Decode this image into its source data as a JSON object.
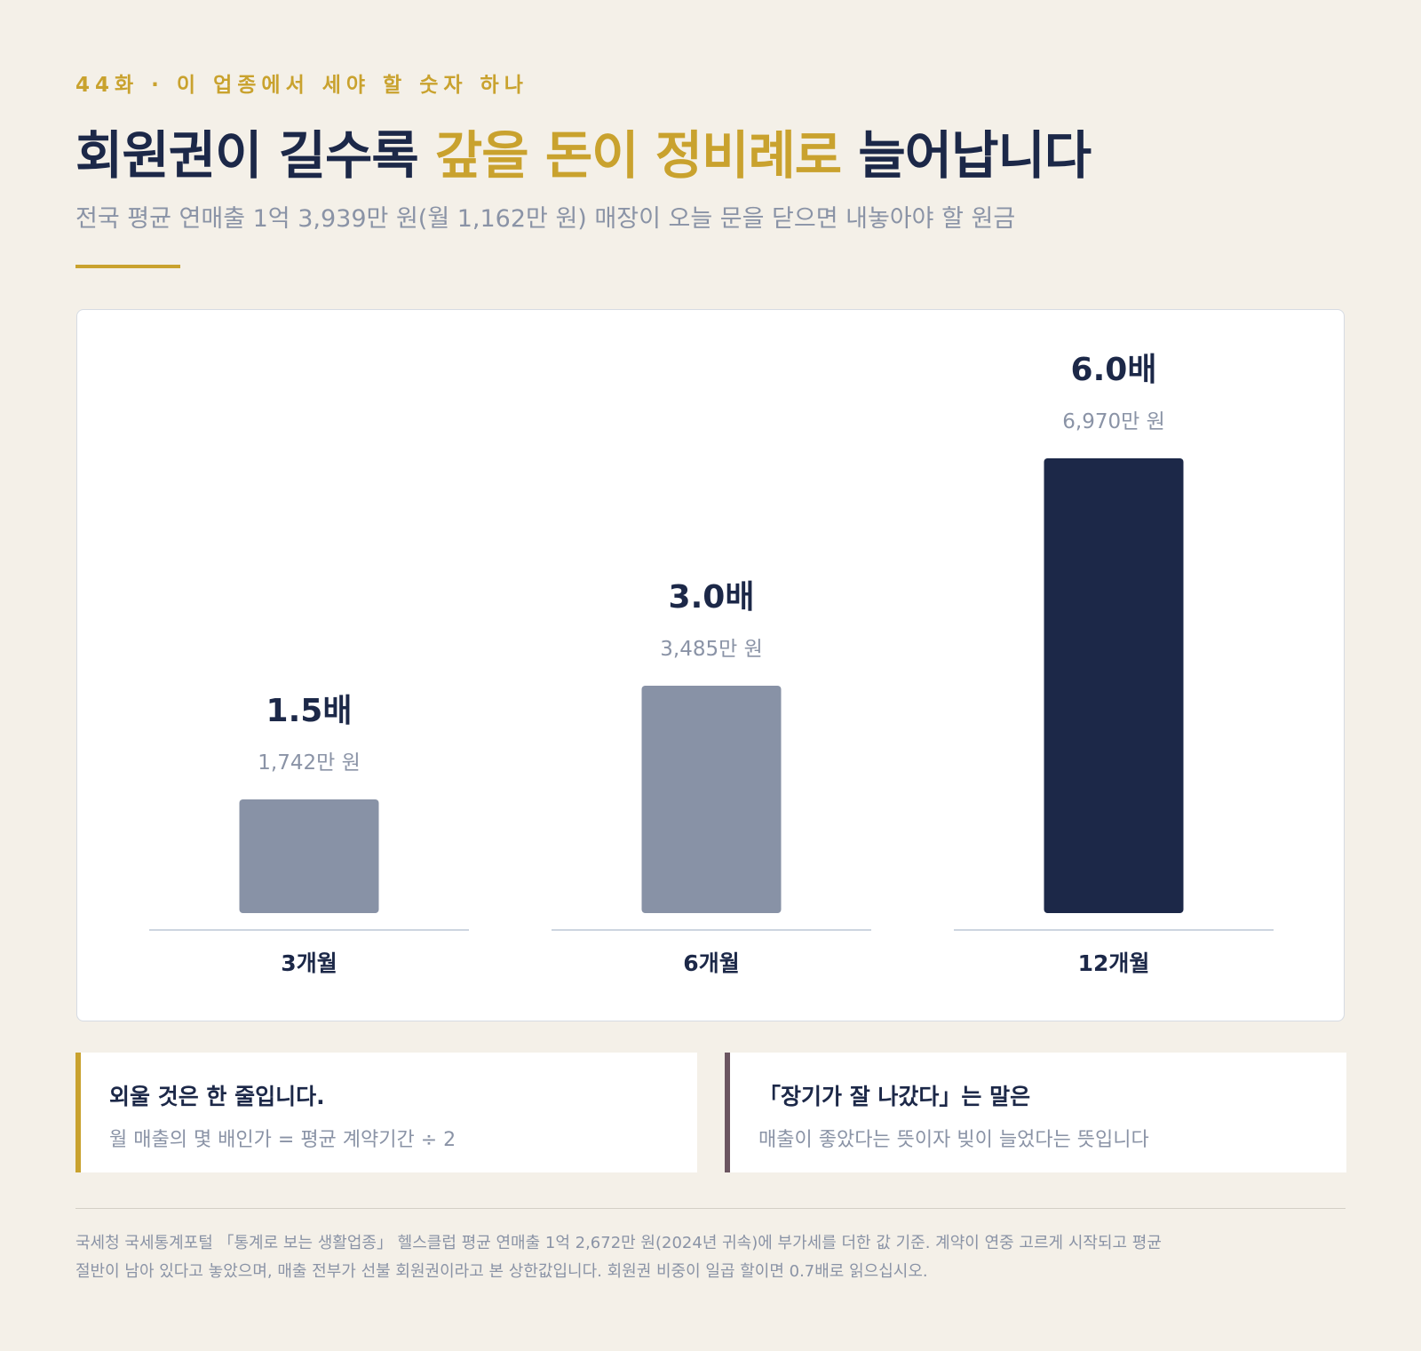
{
  "header": {
    "kicker": "44화 · 이 업종에서 세야 할 숫자 하나",
    "title_pre": "회원권이 길수록 ",
    "title_accent": "갚을 돈이 정비례로",
    "title_post": " 늘어납니다",
    "subtitle": "전국 평균 연매출 1억 3,939만 원(월 1,162만 원) 매장이 오늘 문을 닫으면 내놓아야 할 원금"
  },
  "colors": {
    "accent": "#c9a22e",
    "navy": "#1c2848",
    "bar_muted": "#8892a6",
    "bar_highlight": "#1c2848",
    "muted_text": "#8a93a6"
  },
  "chart_data": {
    "type": "bar",
    "categories": [
      "3개월",
      "6개월",
      "12개월"
    ],
    "values": [
      1.5,
      3.0,
      6.0
    ],
    "value_labels": [
      "1.5배",
      "3.0배",
      "6.0배"
    ],
    "amount_labels": [
      "1,742만 원",
      "3,485만 원",
      "6,970만 원"
    ],
    "highlight_index": 2,
    "ylim": [
      0,
      6.0
    ],
    "title": "",
    "xlabel": "",
    "ylabel": ""
  },
  "notes": [
    {
      "head": "외울 것은 한 줄입니다.",
      "body": "월 매출의 몇 배인가 = 평균 계약기간 ÷ 2"
    },
    {
      "head": "「장기가 잘 나갔다」는 말은",
      "body": "매출이 좋았다는 뜻이자 빚이 늘었다는 뜻입니다"
    }
  ],
  "footer": {
    "line1": "국세청 국세통계포털 「통계로 보는 생활업종」 헬스클럽 평균 연매출 1억 2,672만 원(2024년 귀속)에 부가세를 더한 값 기준. 계약이 연중 고르게 시작되고 평균",
    "line2": "절반이 남아 있다고 놓았으며, 매출 전부가 선불 회원권이라고 본 상한값입니다. 회원권 비중이 일곱 할이면 0.7배로 읽으십시오."
  }
}
